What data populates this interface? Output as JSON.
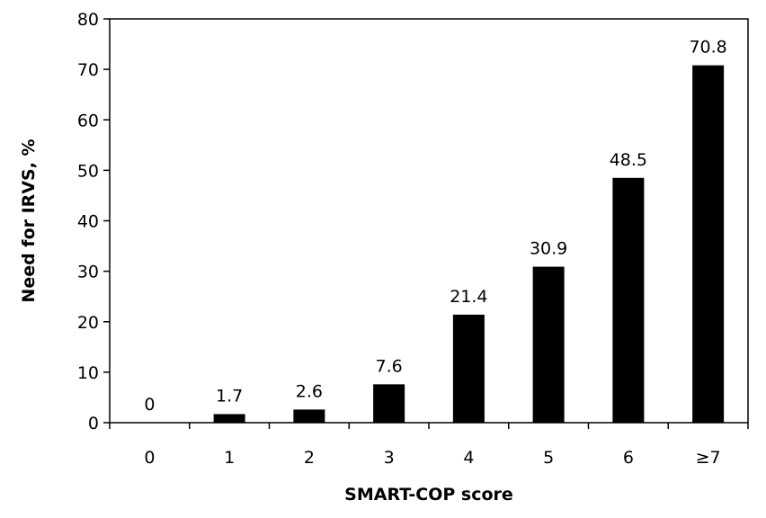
{
  "chart_data": {
    "type": "bar",
    "categories": [
      "0",
      "1",
      "2",
      "3",
      "4",
      "5",
      "6",
      "≥7"
    ],
    "values": [
      0,
      1.7,
      2.6,
      7.6,
      21.4,
      30.9,
      48.5,
      70.8
    ],
    "data_labels": [
      "0",
      "1.7",
      "2.6",
      "7.6",
      "21.4",
      "30.9",
      "48.5",
      "70.8"
    ],
    "title": "",
    "xlabel": "SMART-COP score",
    "ylabel": "Need for IRVS, %",
    "ylim": [
      0,
      80
    ],
    "yticks": [
      "0",
      "10",
      "20",
      "30",
      "40",
      "50",
      "60",
      "70",
      "80"
    ],
    "grid": false,
    "bar_color": "#000000",
    "legend": "none"
  }
}
